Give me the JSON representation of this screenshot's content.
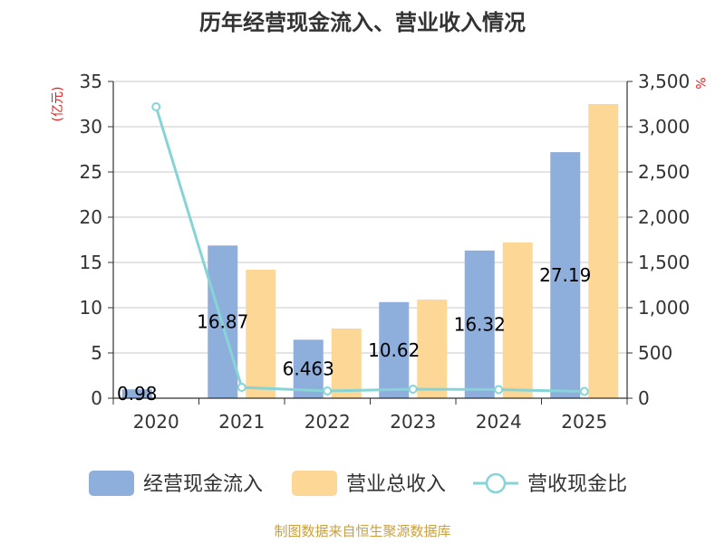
{
  "chart_data": {
    "type": "bar",
    "title": "历年经营现金流入、营业收入情况",
    "categories": [
      "2020",
      "2021",
      "2022",
      "2023",
      "2024",
      "2025"
    ],
    "series": [
      {
        "name": "经营现金流入",
        "kind": "bar",
        "axis": "left",
        "color": "#8eaedb",
        "values": [
          0.98,
          16.87,
          6.463,
          10.62,
          16.32,
          27.19
        ],
        "labels": [
          "0.98",
          "16.87",
          "6.463",
          "10.62",
          "16.32",
          "27.19"
        ]
      },
      {
        "name": "营业总收入",
        "kind": "bar",
        "axis": "left",
        "color": "#fdd795",
        "values": [
          null,
          14.2,
          7.7,
          10.9,
          17.2,
          32.5
        ]
      },
      {
        "name": "营收现金比",
        "kind": "line",
        "axis": "right",
        "color": "#86d4d6",
        "values": [
          3220,
          120,
          80,
          100,
          95,
          75
        ]
      }
    ],
    "y_left": {
      "unit": "(亿元)",
      "min": 0,
      "max": 35,
      "ticks": [
        0,
        5,
        10,
        15,
        20,
        25,
        30,
        35
      ]
    },
    "y_right": {
      "unit": "%",
      "min": 0,
      "max": 3500,
      "ticks": [
        "0",
        "500",
        "1,000",
        "1,500",
        "2,000",
        "2,500",
        "3,000",
        "3,500"
      ]
    },
    "grid": true,
    "legend_position": "bottom"
  },
  "source": "制图数据来自恒生聚源数据库"
}
